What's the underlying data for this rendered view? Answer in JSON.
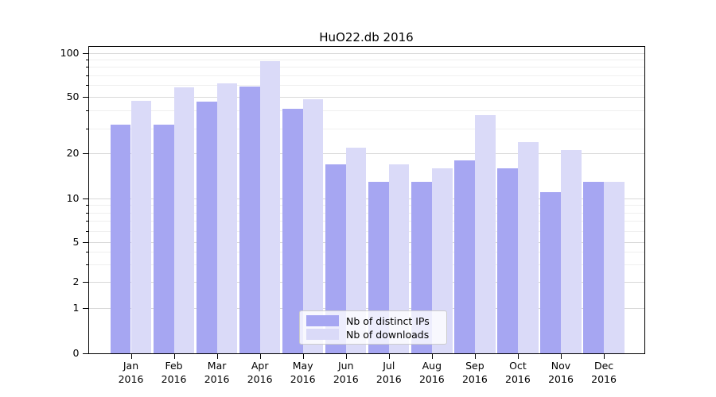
{
  "title": "HuO22.db 2016",
  "chart_data": {
    "type": "bar",
    "title": "HuO22.db 2016",
    "categories": [
      "Jan",
      "Feb",
      "Mar",
      "Apr",
      "May",
      "Jun",
      "Jul",
      "Aug",
      "Sep",
      "Oct",
      "Nov",
      "Dec"
    ],
    "category_year": "2016",
    "series": [
      {
        "name": "Nb of distinct IPs",
        "color": "#a6a6f2",
        "values": [
          32,
          32,
          46,
          59,
          41,
          17,
          13,
          13,
          18,
          16,
          11,
          13
        ]
      },
      {
        "name": "Nb of downloads",
        "color": "#dadaf8",
        "values": [
          47,
          58,
          62,
          88,
          48,
          22,
          17,
          16,
          37,
          24,
          21,
          13
        ]
      }
    ],
    "yscale": "symlog-like",
    "y_ticks": [
      0,
      1,
      2,
      5,
      10,
      20,
      50,
      100
    ],
    "y_minor_ticks": [
      3,
      4,
      6,
      7,
      8,
      9,
      30,
      40,
      60,
      70,
      80,
      90
    ],
    "ylim": [
      0,
      110
    ],
    "xlabel": "",
    "ylabel": "",
    "grid": true,
    "legend_position": "lower-center",
    "colors": {
      "axis": "#000000",
      "grid_major": "#d8d8d8",
      "grid_minor": "#efefef",
      "legend_border": "#cccccc",
      "background": "#ffffff"
    }
  }
}
